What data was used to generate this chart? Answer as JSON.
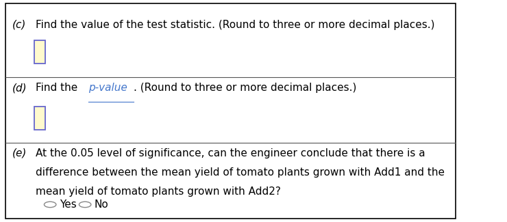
{
  "bg_color": "#ffffff",
  "border_color": "#000000",
  "divider_color": "#555555",
  "label_color": "#000000",
  "link_color": "#4477cc",
  "input_box_fill": "#fffacd",
  "input_box_border": "#6666cc",
  "section_c_label": "(c)",
  "section_c_text": "Find the value of the test statistic. (Round to three or more decimal places.)",
  "section_d_label": "(d)",
  "section_d_text1": "Find the ",
  "section_d_link": "p-value",
  "section_d_text2": ". (Round to three or more decimal places.)",
  "section_e_label": "(e)",
  "section_e_line1": "At the 0.05 level of significance, can the engineer conclude that there is a",
  "section_e_line2": "difference between the mean yield of tomato plants grown with Add1 and the",
  "section_e_line3": "mean yield of tomato plants grown with Add2?",
  "radio_yes": "Yes",
  "radio_no": "No",
  "font_size_main": 11.0,
  "font_size_label": 11.0
}
